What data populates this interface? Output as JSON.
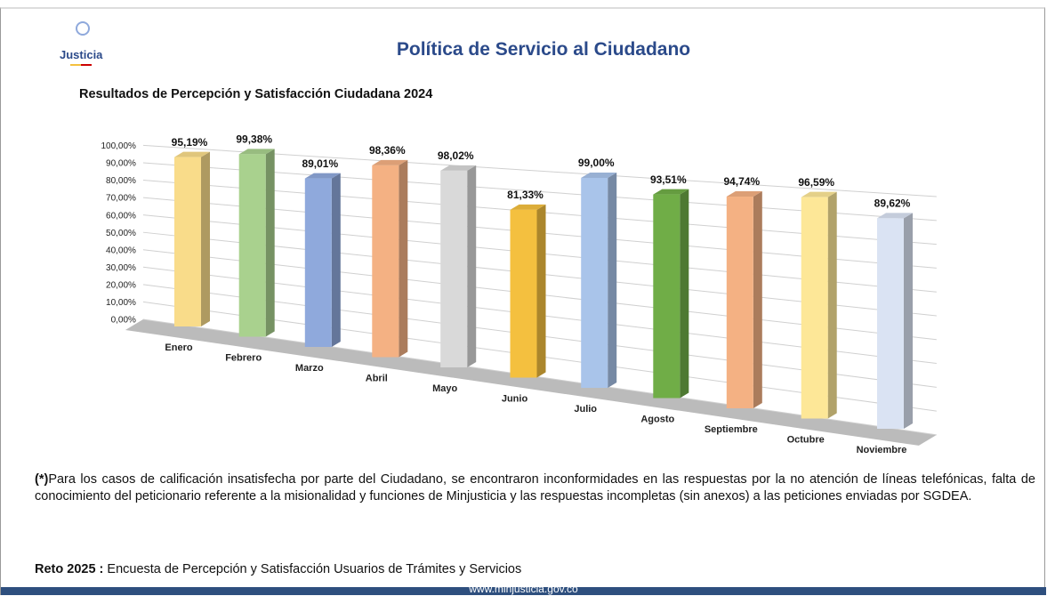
{
  "header": {
    "logo": "Justicia",
    "title": "Política de Servicio al Ciudadano"
  },
  "chart_data": {
    "type": "bar3d",
    "title": "Resultados de Percepción y Satisfacción Ciudadana 2024",
    "categories": [
      "Enero",
      "Febrero",
      "Marzo",
      "Abril",
      "Mayo",
      "Junio",
      "Julio",
      "Agosto",
      "Septiembre",
      "Octubre",
      "Noviembre"
    ],
    "values": [
      95.19,
      99.38,
      89.01,
      98.36,
      98.02,
      81.33,
      99.0,
      93.51,
      94.74,
      96.59,
      89.62
    ],
    "value_labels": [
      "95,19%",
      "99,38%",
      "89,01%",
      "98,36%",
      "98,02%",
      "81,33%",
      "99,00%",
      "93,51%",
      "94,74%",
      "96,59%",
      "89,62%"
    ],
    "colors": [
      "#f9dc8a",
      "#a9d18e",
      "#8fa9dc",
      "#f4b183",
      "#d9d9d9",
      "#f4c03f",
      "#a9c4ea",
      "#70ad47",
      "#f4b183",
      "#fde797",
      "#dae3f3"
    ],
    "ylim": [
      0,
      100
    ],
    "yticks": [
      {
        "value": 0,
        "label": "0,00%"
      },
      {
        "value": 10,
        "label": "10,00%"
      },
      {
        "value": 20,
        "label": "20,00%"
      },
      {
        "value": 30,
        "label": "30,00%"
      },
      {
        "value": 40,
        "label": "40,00%"
      },
      {
        "value": 50,
        "label": "50,00%"
      },
      {
        "value": 60,
        "label": "60,00%"
      },
      {
        "value": 70,
        "label": "70,00%"
      },
      {
        "value": 80,
        "label": "80,00%"
      },
      {
        "value": 90,
        "label": "90,00%"
      },
      {
        "value": 100,
        "label": "100,00%"
      }
    ],
    "grid": true
  },
  "note": {
    "marker": "(*)",
    "text": "Para los casos de calificación insatisfecha por parte del Ciudadano, se encontraron inconformidades en las respuestas por la no atención de líneas telefónicas, falta de conocimiento del peticionario referente a la misionalidad y funciones de Minjusticia y las respuestas incompletas (sin anexos) a las peticiones enviadas por SGDEA."
  },
  "reto": {
    "label": "Reto 2025 :",
    "text": "Encuesta de Percepción y Satisfacción Usuarios de Trámites y Servicios"
  },
  "footer": {
    "url": "www.minjusticia.gov.co"
  }
}
